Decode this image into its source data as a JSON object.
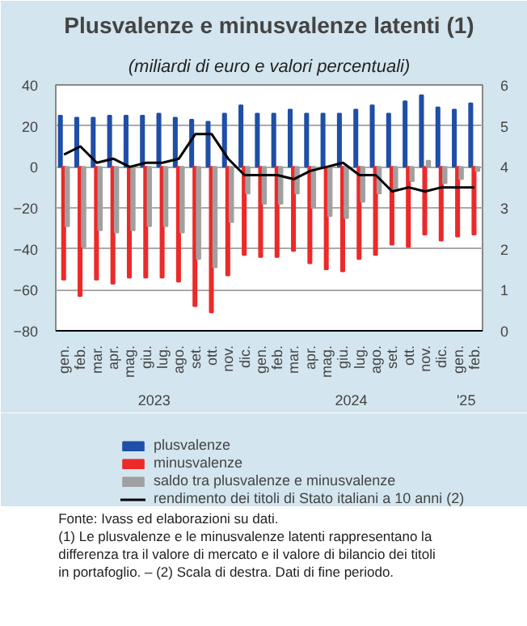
{
  "chart_data": {
    "type": "bar",
    "title": "Plusvalenze e minusvalenze latenti (1)",
    "subtitle": "(miliardi di euro e valori percentuali)",
    "categories": [
      "gen.",
      "feb.",
      "mar.",
      "apr.",
      "mag.",
      "giu.",
      "lug.",
      "ago.",
      "set.",
      "ott.",
      "nov.",
      "dic.",
      "gen.",
      "feb.",
      "mar.",
      "apr.",
      "mag.",
      "giu.",
      "lug.",
      "ago.",
      "set.",
      "ott.",
      "nov.",
      "dic.",
      "gen.",
      "feb."
    ],
    "series": [
      {
        "name": "plusvalenze",
        "color": "#1f4fa6",
        "values": [
          25,
          24,
          24,
          25,
          25,
          25,
          26,
          24,
          23,
          22,
          26,
          30,
          26,
          26,
          28,
          26,
          26,
          26,
          28,
          30,
          26,
          32,
          35,
          29,
          28,
          31
        ]
      },
      {
        "name": "minusvalenze",
        "color": "#ec2a2a",
        "values": [
          -55,
          -63,
          -55,
          -57,
          -54,
          -54,
          -54,
          -56,
          -68,
          -71,
          -53,
          -43,
          -44,
          -44,
          -41,
          -47,
          -50,
          -51,
          -45,
          -43,
          -38,
          -39,
          -33,
          -36,
          -34,
          -33
        ]
      },
      {
        "name": "saldo tra plusvalenze e minusvalenze",
        "color": "#a0a0a0",
        "values": [
          -29,
          -39,
          -31,
          -32,
          -31,
          -29,
          -29,
          -32,
          -45,
          -49,
          -27,
          -13,
          -18,
          -18,
          -13,
          -20,
          -24,
          -25,
          -17,
          -13,
          -11,
          -7,
          3,
          -8,
          -6,
          -2
        ]
      },
      {
        "name": "rendimento dei titoli di Stato italiani a 10 anni (2)",
        "type": "line",
        "axis": "y2",
        "color": "#000000",
        "values": [
          4.3,
          4.5,
          4.1,
          4.2,
          4.0,
          4.1,
          4.1,
          4.2,
          4.8,
          4.8,
          4.2,
          3.8,
          3.8,
          3.8,
          3.7,
          3.9,
          4.0,
          4.1,
          3.8,
          3.8,
          3.4,
          3.5,
          3.4,
          3.5,
          3.5,
          3.5
        ]
      }
    ],
    "ylim": [
      -80,
      40
    ],
    "yticks": [
      -80,
      -60,
      -40,
      -20,
      0,
      20,
      40
    ],
    "y2lim": [
      0,
      6
    ],
    "y2ticks": [
      0,
      1,
      2,
      3,
      4,
      5,
      6
    ],
    "grid": "y",
    "legend": "bottom",
    "line_style": "solid",
    "marker": "none",
    "annotations": [
      "2023",
      "2024",
      "'25",
      "Fonte: Ivass ed elaborazioni su dati.",
      "(1) Le plusvalenze e le minusvalenze latenti rappresentano la differenza tra il valore di mercato e il valore di bilancio dei titoli in portafoglio. – (2) Scala di destra. Dati di fine periodo."
    ]
  }
}
